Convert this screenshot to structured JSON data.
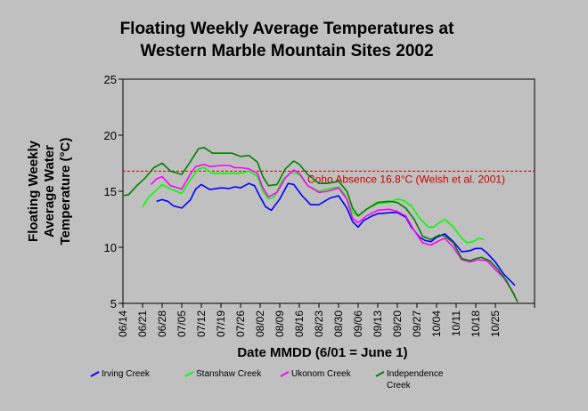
{
  "chart_data": {
    "type": "line",
    "title": [
      "Floating Weekly Average Temperatures at",
      "Western Marble Mountain Sites 2002"
    ],
    "ylabel": [
      "Floating Weekly",
      "Average Water",
      "Temperature (°C)"
    ],
    "xlabel": "Date MMDD (6/01 = June 1)",
    "ylim": [
      5,
      25
    ],
    "yticks": [
      5,
      10,
      15,
      20,
      25
    ],
    "x_range": [
      "06/14",
      "11/08"
    ],
    "x_ticks": [
      "06/14",
      "06/21",
      "06/28",
      "07/05",
      "07/12",
      "07/19",
      "07/26",
      "08/02",
      "08/09",
      "08/16",
      "08/23",
      "08/30",
      "09/06",
      "09/13",
      "09/20",
      "09/27",
      "10/04",
      "10/11",
      "10/18",
      "10/25"
    ],
    "grid": false,
    "reference_line": {
      "value": 16.8,
      "label": "Coho Absence 16.8°C (Welsh et al. 2001)",
      "color": "#cc0000"
    },
    "series": [
      {
        "name": "Irving Creek",
        "color": "#0000ff",
        "points": [
          [
            "06/26",
            14.1
          ],
          [
            "06/28",
            14.25
          ],
          [
            "06/30",
            14.1
          ],
          [
            "07/02",
            13.7
          ],
          [
            "07/05",
            13.5
          ],
          [
            "07/08",
            14.2
          ],
          [
            "07/10",
            15.2
          ],
          [
            "07/12",
            15.6
          ],
          [
            "07/15",
            15.15
          ],
          [
            "07/19",
            15.3
          ],
          [
            "07/22",
            15.25
          ],
          [
            "07/24",
            15.4
          ],
          [
            "07/26",
            15.3
          ],
          [
            "07/29",
            15.7
          ],
          [
            "07/31",
            15.5
          ],
          [
            "08/02",
            14.5
          ],
          [
            "08/04",
            13.6
          ],
          [
            "08/06",
            13.3
          ],
          [
            "08/09",
            14.3
          ],
          [
            "08/12",
            15.7
          ],
          [
            "08/14",
            15.6
          ],
          [
            "08/17",
            14.6
          ],
          [
            "08/20",
            13.8
          ],
          [
            "08/23",
            13.8
          ],
          [
            "08/27",
            14.4
          ],
          [
            "08/30",
            14.6
          ],
          [
            "09/02",
            13.5
          ],
          [
            "09/04",
            12.3
          ],
          [
            "09/06",
            11.8
          ],
          [
            "09/08",
            12.4
          ],
          [
            "09/11",
            12.8
          ],
          [
            "09/13",
            13.0
          ],
          [
            "09/18",
            13.1
          ],
          [
            "09/20",
            13.1
          ],
          [
            "09/23",
            12.7
          ],
          [
            "09/25",
            11.8
          ],
          [
            "09/28",
            10.9
          ],
          [
            "09/30",
            10.6
          ],
          [
            "10/02",
            10.5
          ],
          [
            "10/04",
            10.9
          ],
          [
            "10/07",
            11.2
          ],
          [
            "10/10",
            10.5
          ],
          [
            "10/13",
            9.6
          ],
          [
            "10/16",
            9.7
          ],
          [
            "10/18",
            9.9
          ],
          [
            "10/20",
            9.9
          ],
          [
            "10/22",
            9.5
          ],
          [
            "10/25",
            8.7
          ],
          [
            "10/28",
            7.6
          ],
          [
            "11/01",
            6.6
          ]
        ]
      },
      {
        "name": "Stanshaw Creek",
        "color": "#00ff00",
        "points": [
          [
            "06/21",
            13.6
          ],
          [
            "06/23",
            14.4
          ],
          [
            "06/25",
            14.9
          ],
          [
            "06/28",
            15.6
          ],
          [
            "07/01",
            15.2
          ],
          [
            "07/05",
            14.8
          ],
          [
            "07/08",
            16.0
          ],
          [
            "07/11",
            17.0
          ],
          [
            "07/13",
            17.1
          ],
          [
            "07/16",
            16.6
          ],
          [
            "07/19",
            16.6
          ],
          [
            "07/23",
            16.6
          ],
          [
            "07/26",
            16.6
          ],
          [
            "07/29",
            16.8
          ],
          [
            "08/01",
            16.3
          ],
          [
            "08/03",
            15.0
          ],
          [
            "08/05",
            14.3
          ],
          [
            "08/07",
            14.5
          ],
          [
            "08/10",
            16.0
          ],
          [
            "08/13",
            16.7
          ],
          [
            "08/16",
            16.5
          ],
          [
            "08/19",
            15.5
          ],
          [
            "08/23",
            15.0
          ],
          [
            "08/26",
            15.2
          ],
          [
            "08/30",
            15.4
          ],
          [
            "09/01",
            14.8
          ],
          [
            "09/04",
            13.1
          ],
          [
            "09/06",
            12.8
          ],
          [
            "09/09",
            13.4
          ],
          [
            "09/13",
            13.9
          ],
          [
            "09/17",
            14.0
          ],
          [
            "09/20",
            14.3
          ],
          [
            "09/22",
            14.2
          ],
          [
            "09/25",
            13.7
          ],
          [
            "09/28",
            12.6
          ],
          [
            "10/01",
            11.8
          ],
          [
            "10/03",
            11.8
          ],
          [
            "10/05",
            12.2
          ],
          [
            "10/07",
            12.5
          ],
          [
            "10/10",
            11.8
          ],
          [
            "10/13",
            10.8
          ],
          [
            "10/15",
            10.4
          ],
          [
            "10/17",
            10.5
          ],
          [
            "10/19",
            10.8
          ],
          [
            "10/21",
            10.7
          ]
        ]
      },
      {
        "name": "Ukonom Creek",
        "color": "#ff00ff",
        "points": [
          [
            "06/24",
            15.6
          ],
          [
            "06/26",
            16.1
          ],
          [
            "06/28",
            16.3
          ],
          [
            "07/01",
            15.5
          ],
          [
            "07/05",
            15.2
          ],
          [
            "07/08",
            16.5
          ],
          [
            "07/10",
            17.2
          ],
          [
            "07/13",
            17.4
          ],
          [
            "07/15",
            17.2
          ],
          [
            "07/19",
            17.3
          ],
          [
            "07/22",
            17.3
          ],
          [
            "07/24",
            17.1
          ],
          [
            "07/26",
            17.1
          ],
          [
            "07/29",
            17.0
          ],
          [
            "08/01",
            16.6
          ],
          [
            "08/03",
            15.3
          ],
          [
            "08/05",
            14.5
          ],
          [
            "08/08",
            14.9
          ],
          [
            "08/11",
            16.2
          ],
          [
            "08/14",
            16.9
          ],
          [
            "08/16",
            16.6
          ],
          [
            "08/19",
            15.5
          ],
          [
            "08/23",
            14.9
          ],
          [
            "08/26",
            15.0
          ],
          [
            "08/30",
            15.3
          ],
          [
            "09/02",
            14.3
          ],
          [
            "09/04",
            12.6
          ],
          [
            "09/06",
            12.2
          ],
          [
            "09/09",
            12.8
          ],
          [
            "09/13",
            13.3
          ],
          [
            "09/17",
            13.4
          ],
          [
            "09/20",
            13.2
          ],
          [
            "09/23",
            12.8
          ],
          [
            "09/26",
            11.5
          ],
          [
            "09/29",
            10.4
          ],
          [
            "10/02",
            10.2
          ],
          [
            "10/05",
            10.6
          ],
          [
            "10/07",
            10.8
          ],
          [
            "10/10",
            10.0
          ],
          [
            "10/13",
            8.9
          ],
          [
            "10/16",
            8.7
          ],
          [
            "10/19",
            8.9
          ],
          [
            "10/22",
            8.8
          ],
          [
            "10/25",
            8.0
          ],
          [
            "10/28",
            7.3
          ],
          [
            "11/01",
            5.7
          ]
        ]
      },
      {
        "name": "Independence Creek",
        "color": "#008000",
        "points": [
          [
            "06/14",
            14.6
          ],
          [
            "06/16",
            14.7
          ],
          [
            "06/19",
            15.5
          ],
          [
            "06/22",
            16.2
          ],
          [
            "06/25",
            17.1
          ],
          [
            "06/28",
            17.5
          ],
          [
            "07/01",
            16.8
          ],
          [
            "07/05",
            16.5
          ],
          [
            "07/08",
            17.6
          ],
          [
            "07/11",
            18.8
          ],
          [
            "07/13",
            18.9
          ],
          [
            "07/16",
            18.4
          ],
          [
            "07/19",
            18.4
          ],
          [
            "07/23",
            18.4
          ],
          [
            "07/26",
            18.1
          ],
          [
            "07/29",
            18.2
          ],
          [
            "08/01",
            17.6
          ],
          [
            "08/03",
            16.3
          ],
          [
            "08/05",
            15.5
          ],
          [
            "08/08",
            15.6
          ],
          [
            "08/11",
            17.0
          ],
          [
            "08/14",
            17.7
          ],
          [
            "08/16",
            17.4
          ],
          [
            "08/19",
            16.5
          ],
          [
            "08/23",
            15.7
          ],
          [
            "08/26",
            15.7
          ],
          [
            "08/30",
            15.9
          ],
          [
            "09/02",
            15.0
          ],
          [
            "09/04",
            13.5
          ],
          [
            "09/06",
            12.8
          ],
          [
            "09/09",
            13.4
          ],
          [
            "09/13",
            14.0
          ],
          [
            "09/17",
            14.1
          ],
          [
            "09/20",
            14.0
          ],
          [
            "09/23",
            13.5
          ],
          [
            "09/26",
            12.5
          ],
          [
            "09/29",
            11.0
          ],
          [
            "10/02",
            10.7
          ],
          [
            "10/05",
            11.1
          ],
          [
            "10/07",
            11.0
          ],
          [
            "10/10",
            10.4
          ],
          [
            "10/13",
            9.0
          ],
          [
            "10/16",
            8.8
          ],
          [
            "10/18",
            9.0
          ],
          [
            "10/20",
            9.1
          ],
          [
            "10/23",
            8.8
          ],
          [
            "10/26",
            8.0
          ],
          [
            "10/29",
            7.0
          ],
          [
            "11/01",
            5.6
          ],
          [
            "11/02",
            5.1
          ]
        ]
      }
    ]
  }
}
